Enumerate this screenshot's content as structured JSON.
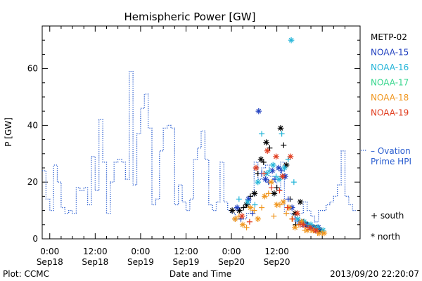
{
  "chart_data": {
    "type": "line",
    "title": "Hemispheric Power [GW]",
    "ylabel": "P [GW]",
    "xlabel": "Date and Time",
    "ylim": [
      0,
      75
    ],
    "yticks": [
      0,
      20,
      40,
      60
    ],
    "xlim_hours": [
      -2,
      82
    ],
    "xticks": [
      {
        "hours": 0,
        "time": "0:00",
        "date": "Sep18"
      },
      {
        "hours": 12,
        "time": "12:00",
        "date": "Sep18"
      },
      {
        "hours": 24,
        "time": "0:00",
        "date": "Sep19"
      },
      {
        "hours": 36,
        "time": "12:00",
        "date": "Sep19"
      },
      {
        "hours": 48,
        "time": "0:00",
        "date": "Sep20"
      },
      {
        "hours": 60,
        "time": "12:00",
        "date": "Sep20"
      }
    ],
    "footer_left": "Plot: CCMC",
    "footer_right": "2013/09/20 22:20:07",
    "grid": false,
    "series": [
      {
        "name": "Ovation Prime HPI",
        "label_line1": "– Ovation",
        "label_line2": "Prime HPI",
        "color": "#2c5fd0",
        "style": "dotted-step",
        "x": [
          -2,
          -1,
          0,
          1,
          2,
          3,
          4,
          5,
          6,
          7,
          8,
          9,
          10,
          11,
          12,
          13,
          14,
          15,
          16,
          17,
          18,
          19,
          20,
          21,
          22,
          23,
          24,
          25,
          26,
          27,
          28,
          29,
          30,
          31,
          32,
          33,
          34,
          35,
          36,
          37,
          38,
          39,
          40,
          41,
          42,
          43,
          44,
          45,
          46,
          47,
          48,
          49,
          50,
          51,
          52,
          53,
          54,
          55,
          56,
          57,
          58,
          59,
          60,
          61,
          62,
          63,
          64,
          65,
          66,
          67,
          68,
          69,
          70,
          71,
          72,
          73,
          74,
          75,
          76,
          77,
          78,
          79,
          80
        ],
        "values": [
          24,
          14,
          10,
          26,
          20,
          11,
          9,
          10,
          9,
          18,
          17,
          18,
          12,
          29,
          17,
          42,
          27,
          9,
          20,
          27,
          28,
          27,
          21,
          59,
          19,
          37,
          46,
          51,
          39,
          12,
          14,
          31,
          39,
          40,
          39,
          12,
          19,
          13,
          10,
          14,
          28,
          32,
          38,
          28,
          12,
          10,
          13,
          27,
          13,
          10,
          9,
          7,
          7,
          7,
          9,
          15,
          27,
          21,
          25,
          26,
          22,
          20,
          17,
          27,
          9,
          9,
          7,
          5,
          9,
          13,
          10,
          8,
          6,
          10,
          10,
          12,
          13,
          15,
          19,
          31,
          15,
          12,
          10
        ]
      },
      {
        "name": "METP-02",
        "color": "#000000",
        "north": {
          "x": [
            48.2,
            50.1,
            52.0,
            54.1,
            55.8,
            57.2,
            59.3,
            61.0,
            62.5,
            64.8,
            66.2,
            68.1,
            69.8,
            71.4
          ],
          "y": [
            10,
            10,
            12,
            16,
            28,
            34,
            16,
            39,
            26,
            9,
            13,
            5,
            4,
            3
          ]
        },
        "south": {
          "x": [
            49.0,
            51.2,
            53.0,
            55.0,
            56.5,
            58.1,
            60.0,
            61.8,
            63.5,
            65.0,
            67.0,
            68.8,
            70.5
          ],
          "y": [
            7,
            11,
            15,
            23,
            27,
            32,
            18,
            33,
            14,
            5,
            6,
            4,
            4
          ]
        }
      },
      {
        "name": "NOAA-15",
        "color": "#1f3fbf",
        "north": {
          "x": [
            49.5,
            52.5,
            55.2,
            57.0,
            58.8,
            60.5,
            62.2,
            64.0,
            66.0,
            67.8,
            69.5,
            71.0
          ],
          "y": [
            11,
            14,
            45,
            21,
            24,
            25,
            22,
            11,
            6,
            5,
            4,
            4
          ]
        },
        "south": {
          "x": [
            50.5,
            53.6,
            56.0,
            57.8,
            59.5,
            61.2,
            63.0,
            64.8,
            66.8,
            68.5,
            70.2
          ],
          "y": [
            7,
            9,
            23,
            20,
            21,
            24,
            14,
            7,
            5,
            4,
            3
          ]
        }
      },
      {
        "name": "NOAA-16",
        "color": "#22b4d8",
        "north": {
          "x": [
            52.3,
            55.0,
            57.3,
            59.0,
            60.6,
            62.0,
            63.8,
            65.5,
            67.2,
            69.0,
            70.8,
            72.2
          ],
          "y": [
            13,
            20,
            23,
            26,
            21,
            25,
            70,
            7,
            6,
            5,
            4,
            3
          ]
        },
        "south": {
          "x": [
            50.0,
            54.2,
            56.0,
            58.0,
            59.8,
            61.3,
            63.0,
            64.5,
            66.6,
            68.3,
            70.0
          ],
          "y": [
            14,
            12,
            37,
            24,
            22,
            37,
            28,
            20,
            6,
            5,
            4
          ]
        }
      },
      {
        "name": "NOAA-17",
        "color": "#36d68c",
        "north": {
          "x": [],
          "y": []
        },
        "south": {
          "x": [],
          "y": []
        }
      },
      {
        "name": "NOAA-18",
        "color": "#f0961e",
        "north": {
          "x": [
            49.0,
            51.0,
            53.0,
            55.0,
            56.8,
            58.5,
            60.0,
            61.7,
            63.2,
            64.8,
            66.5,
            68.0,
            69.6,
            71.2,
            72.5
          ],
          "y": [
            7,
            5,
            11,
            7,
            15,
            20,
            12,
            13,
            11,
            4,
            6,
            3,
            3,
            2,
            2
          ]
        },
        "south": {
          "x": [
            50.0,
            52.0,
            54.0,
            56.0,
            57.8,
            59.2,
            60.8,
            62.5,
            64.0,
            65.8,
            67.4,
            69.0,
            70.8,
            72.0
          ],
          "y": [
            8,
            4,
            10,
            11,
            16,
            8,
            12,
            9,
            7,
            5,
            3,
            3,
            2,
            2
          ]
        }
      },
      {
        "name": "NOAA-19",
        "color": "#e03c1e",
        "north": {
          "x": [
            50.8,
            54.5,
            57.5,
            59.8,
            61.5,
            63.6,
            65.4,
            67.0,
            68.8,
            70.4
          ],
          "y": [
            8,
            25,
            31,
            29,
            22,
            29,
            9,
            5,
            4,
            3
          ]
        },
        "south": {
          "x": [
            52.8,
            56.6,
            58.6,
            60.7,
            62.8,
            64.2,
            66.2,
            68.0,
            69.8
          ],
          "y": [
            6,
            23,
            18,
            17,
            11,
            7,
            5,
            4,
            3
          ]
        }
      }
    ],
    "marker_legend": [
      {
        "symbol": "+",
        "label": "south"
      },
      {
        "symbol": "*",
        "label": "north"
      }
    ]
  }
}
